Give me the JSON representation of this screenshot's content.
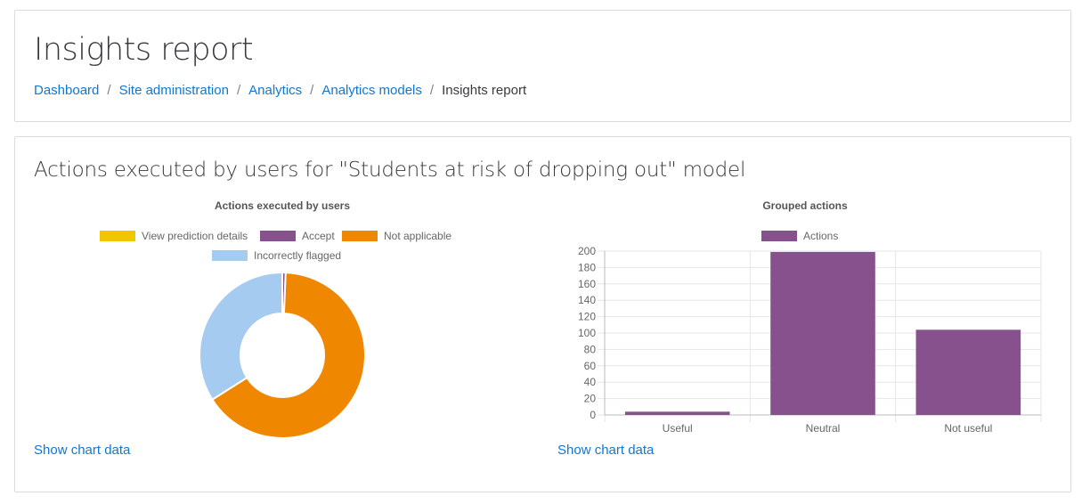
{
  "header": {
    "title": "Insights report",
    "breadcrumb": [
      {
        "label": "Dashboard",
        "link": true
      },
      {
        "label": "Site administration",
        "link": true
      },
      {
        "label": "Analytics",
        "link": true
      },
      {
        "label": "Analytics models",
        "link": true
      },
      {
        "label": "Insights report",
        "link": false
      }
    ],
    "separator": "/"
  },
  "report": {
    "title": "Actions executed by users for \"Students at risk of dropping out\" model",
    "show_chart_data_left": "Show chart data",
    "show_chart_data_right": "Show chart data"
  },
  "colors": {
    "link": "#1177d1",
    "yellow": "#f2c500",
    "purple": "#87518e",
    "orange": "#f08700",
    "lightblue": "#a5cbf0"
  },
  "chart_data": [
    {
      "type": "pie",
      "title": "Actions executed by users",
      "legend": [
        {
          "name": "View prediction details",
          "color": "#f2c500"
        },
        {
          "name": "Accept",
          "color": "#87518e"
        },
        {
          "name": "Not applicable",
          "color": "#f08700"
        },
        {
          "name": "Incorrectly flagged",
          "color": "#a5cbf0"
        }
      ],
      "values": [
        0,
        2,
        202,
        105
      ],
      "donut": true
    },
    {
      "type": "bar",
      "title": "Grouped actions",
      "categories": [
        "Useful",
        "Neutral",
        "Not useful"
      ],
      "series": [
        {
          "name": "Actions",
          "color": "#87518e",
          "values": [
            4,
            199,
            104
          ]
        }
      ],
      "ylim": [
        0,
        200
      ],
      "yticks": [
        0,
        20,
        40,
        60,
        80,
        100,
        120,
        140,
        160,
        180,
        200
      ],
      "legend_position": "top",
      "grid": true
    }
  ]
}
